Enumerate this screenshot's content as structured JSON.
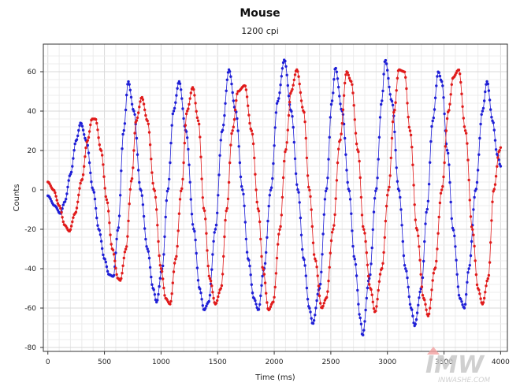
{
  "chart_data": {
    "type": "scatter",
    "title": "Mouse",
    "subtitle": "1200 cpi",
    "xlabel": "Time (ms)",
    "ylabel": "Counts",
    "xlim": [
      -40,
      4060
    ],
    "ylim": [
      -82,
      74
    ],
    "xticks": [
      0,
      500,
      1000,
      1500,
      2000,
      2500,
      3000,
      3500,
      4000
    ],
    "yticks": [
      -80,
      -60,
      -40,
      -20,
      0,
      20,
      40,
      60
    ],
    "grid": true,
    "legend": "none",
    "colors": {
      "series_a": "#1f1fd6",
      "series_b": "#e01b1b",
      "grid_minor": "#ececec",
      "grid_major": "#d9d9d9"
    },
    "series": [
      {
        "color": "#1f1fd6",
        "x_range_ms": [
          0,
          4000
        ],
        "sample_interval_ms": 8,
        "keyframes": [
          [
            0,
            -3
          ],
          [
            60,
            -8
          ],
          [
            110,
            -12
          ],
          [
            150,
            -6
          ],
          [
            200,
            8
          ],
          [
            250,
            25
          ],
          [
            290,
            34
          ],
          [
            340,
            25
          ],
          [
            400,
            0
          ],
          [
            450,
            -20
          ],
          [
            500,
            -35
          ],
          [
            540,
            -43
          ],
          [
            580,
            -44
          ],
          [
            620,
            -20
          ],
          [
            670,
            30
          ],
          [
            710,
            55
          ],
          [
            760,
            40
          ],
          [
            820,
            0
          ],
          [
            880,
            -30
          ],
          [
            930,
            -50
          ],
          [
            960,
            -57
          ],
          [
            1010,
            -40
          ],
          [
            1060,
            0
          ],
          [
            1110,
            40
          ],
          [
            1160,
            55
          ],
          [
            1220,
            30
          ],
          [
            1290,
            -20
          ],
          [
            1340,
            -50
          ],
          [
            1380,
            -61
          ],
          [
            1420,
            -57
          ],
          [
            1480,
            -20
          ],
          [
            1540,
            30
          ],
          [
            1600,
            61
          ],
          [
            1660,
            40
          ],
          [
            1720,
            0
          ],
          [
            1770,
            -35
          ],
          [
            1820,
            -55
          ],
          [
            1860,
            -61
          ],
          [
            1910,
            -40
          ],
          [
            1970,
            0
          ],
          [
            2030,
            45
          ],
          [
            2090,
            66
          ],
          [
            2150,
            40
          ],
          [
            2210,
            0
          ],
          [
            2260,
            -35
          ],
          [
            2310,
            -60
          ],
          [
            2340,
            -68
          ],
          [
            2400,
            -50
          ],
          [
            2460,
            0
          ],
          [
            2510,
            45
          ],
          [
            2540,
            62
          ],
          [
            2600,
            40
          ],
          [
            2660,
            0
          ],
          [
            2710,
            -35
          ],
          [
            2760,
            -65
          ],
          [
            2780,
            -74
          ],
          [
            2840,
            -45
          ],
          [
            2900,
            0
          ],
          [
            2950,
            45
          ],
          [
            2980,
            66
          ],
          [
            3040,
            45
          ],
          [
            3100,
            0
          ],
          [
            3160,
            -40
          ],
          [
            3210,
            -60
          ],
          [
            3240,
            -69
          ],
          [
            3300,
            -50
          ],
          [
            3350,
            -10
          ],
          [
            3400,
            35
          ],
          [
            3450,
            60
          ],
          [
            3480,
            55
          ],
          [
            3530,
            20
          ],
          [
            3580,
            -20
          ],
          [
            3640,
            -55
          ],
          [
            3680,
            -60
          ],
          [
            3720,
            -40
          ],
          [
            3780,
            0
          ],
          [
            3840,
            40
          ],
          [
            3880,
            55
          ],
          [
            3930,
            35
          ],
          [
            3970,
            18
          ],
          [
            4000,
            12
          ]
        ]
      },
      {
        "color": "#e01b1b",
        "x_range_ms": [
          0,
          4000
        ],
        "sample_interval_ms": 8,
        "keyframes": [
          [
            0,
            4
          ],
          [
            50,
            0
          ],
          [
            100,
            -8
          ],
          [
            150,
            -18
          ],
          [
            190,
            -21
          ],
          [
            240,
            -12
          ],
          [
            300,
            5
          ],
          [
            350,
            25
          ],
          [
            390,
            36
          ],
          [
            420,
            36
          ],
          [
            470,
            20
          ],
          [
            520,
            -5
          ],
          [
            570,
            -30
          ],
          [
            620,
            -45
          ],
          [
            640,
            -46
          ],
          [
            690,
            -30
          ],
          [
            740,
            5
          ],
          [
            780,
            35
          ],
          [
            830,
            47
          ],
          [
            880,
            35
          ],
          [
            940,
            0
          ],
          [
            1000,
            -40
          ],
          [
            1040,
            -55
          ],
          [
            1080,
            -58
          ],
          [
            1130,
            -35
          ],
          [
            1180,
            0
          ],
          [
            1230,
            40
          ],
          [
            1280,
            52
          ],
          [
            1330,
            35
          ],
          [
            1380,
            -10
          ],
          [
            1430,
            -45
          ],
          [
            1480,
            -58
          ],
          [
            1530,
            -50
          ],
          [
            1580,
            -10
          ],
          [
            1630,
            30
          ],
          [
            1680,
            50
          ],
          [
            1740,
            53
          ],
          [
            1800,
            30
          ],
          [
            1860,
            -10
          ],
          [
            1900,
            -40
          ],
          [
            1950,
            -61
          ],
          [
            1990,
            -57
          ],
          [
            2050,
            -20
          ],
          [
            2100,
            20
          ],
          [
            2150,
            50
          ],
          [
            2200,
            61
          ],
          [
            2260,
            40
          ],
          [
            2310,
            0
          ],
          [
            2360,
            -35
          ],
          [
            2420,
            -60
          ],
          [
            2460,
            -55
          ],
          [
            2520,
            -20
          ],
          [
            2580,
            25
          ],
          [
            2640,
            60
          ],
          [
            2680,
            55
          ],
          [
            2740,
            20
          ],
          [
            2790,
            -20
          ],
          [
            2850,
            -50
          ],
          [
            2890,
            -62
          ],
          [
            2950,
            -40
          ],
          [
            3010,
            0
          ],
          [
            3060,
            40
          ],
          [
            3100,
            61
          ],
          [
            3150,
            60
          ],
          [
            3200,
            30
          ],
          [
            3260,
            -20
          ],
          [
            3320,
            -55
          ],
          [
            3360,
            -64
          ],
          [
            3420,
            -40
          ],
          [
            3480,
            0
          ],
          [
            3540,
            40
          ],
          [
            3580,
            57
          ],
          [
            3630,
            61
          ],
          [
            3690,
            30
          ],
          [
            3750,
            -20
          ],
          [
            3800,
            -50
          ],
          [
            3840,
            -58
          ],
          [
            3890,
            -45
          ],
          [
            3940,
            0
          ],
          [
            3990,
            20
          ],
          [
            4010,
            23
          ]
        ]
      }
    ]
  }
}
